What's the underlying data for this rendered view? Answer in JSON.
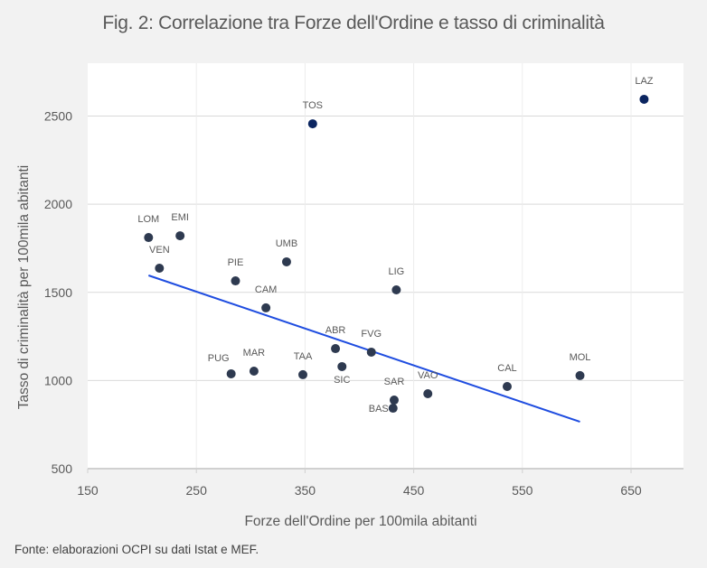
{
  "title": "Fig. 2: Correlazione tra Forze dell'Ordine e tasso di criminalità",
  "source": "Fonte: elaborazioni OCPI su dati Istat e MEF.",
  "colors": {
    "background": "#f2f2f2",
    "plot_background": "#ffffff",
    "grid": "#d9d9d9",
    "point": "#2e3a50",
    "point_highlight": "#0b2560",
    "trendline": "#1f4de0",
    "text": "#595959"
  },
  "chart_data": {
    "type": "scatter",
    "title": "Fig. 2: Correlazione tra Forze dell'Ordine e tasso di criminalità",
    "xlabel": "Forze dell'Ordine per 100mila abitanti",
    "ylabel": "Tasso di criminalità per 100mila abitanti",
    "xlim": [
      150,
      700
    ],
    "ylim": [
      500,
      2700
    ],
    "xticks": [
      "150",
      "250",
      "350",
      "450",
      "550",
      "650"
    ],
    "yticks": [
      "500",
      "1000",
      "1500",
      "2000",
      "2500"
    ],
    "xtick_values": [
      150,
      250,
      350,
      450,
      550,
      650
    ],
    "ytick_values": [
      500,
      1000,
      1500,
      2000,
      2500
    ],
    "grid": true,
    "points": [
      {
        "label": "LOM",
        "x": 206,
        "y": 1811,
        "highlight": false,
        "label_pos": "above"
      },
      {
        "label": "EMI",
        "x": 235,
        "y": 1821,
        "highlight": false,
        "label_pos": "above"
      },
      {
        "label": "VEN",
        "x": 216,
        "y": 1637,
        "highlight": false,
        "label_pos": "above"
      },
      {
        "label": "PIE",
        "x": 286,
        "y": 1565,
        "highlight": false,
        "label_pos": "above"
      },
      {
        "label": "UMB",
        "x": 333,
        "y": 1673,
        "highlight": false,
        "label_pos": "above"
      },
      {
        "label": "CAM",
        "x": 314,
        "y": 1412,
        "highlight": false,
        "label_pos": "above"
      },
      {
        "label": "LIG",
        "x": 434,
        "y": 1514,
        "highlight": false,
        "label_pos": "above"
      },
      {
        "label": "TOS",
        "x": 357,
        "y": 2456,
        "highlight": true,
        "label_pos": "above"
      },
      {
        "label": "LAZ",
        "x": 662,
        "y": 2595,
        "highlight": true,
        "label_pos": "above"
      },
      {
        "label": "ABR",
        "x": 378,
        "y": 1181,
        "highlight": false,
        "label_pos": "above"
      },
      {
        "label": "FVG",
        "x": 411,
        "y": 1161,
        "highlight": false,
        "label_pos": "above"
      },
      {
        "label": "PUG",
        "x": 282,
        "y": 1038,
        "highlight": false,
        "label_pos": "above-left"
      },
      {
        "label": "MAR",
        "x": 303,
        "y": 1053,
        "highlight": false,
        "label_pos": "above"
      },
      {
        "label": "TAA",
        "x": 348,
        "y": 1033,
        "highlight": false,
        "label_pos": "above"
      },
      {
        "label": "SIC",
        "x": 384,
        "y": 1079,
        "highlight": false,
        "label_pos": "below"
      },
      {
        "label": "SAR",
        "x": 432,
        "y": 889,
        "highlight": false,
        "label_pos": "above"
      },
      {
        "label": "BAS",
        "x": 431,
        "y": 843,
        "highlight": false,
        "label_pos": "left"
      },
      {
        "label": "VAO",
        "x": 463,
        "y": 925,
        "highlight": false,
        "label_pos": "above"
      },
      {
        "label": "CAL",
        "x": 536,
        "y": 966,
        "highlight": false,
        "label_pos": "above"
      },
      {
        "label": "MOL",
        "x": 603,
        "y": 1028,
        "highlight": false,
        "label_pos": "above"
      }
    ],
    "trendline": {
      "x": [
        206,
        603
      ],
      "y": [
        1596,
        766
      ]
    }
  }
}
